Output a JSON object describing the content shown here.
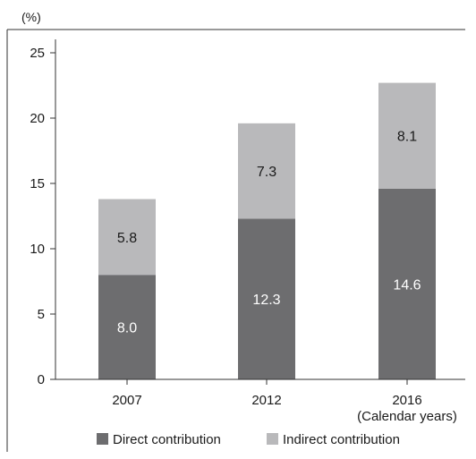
{
  "chart_data": {
    "type": "bar",
    "stacked": true,
    "categories": [
      "2007",
      "2012",
      "2016"
    ],
    "series": [
      {
        "name": "Direct contribution",
        "values": [
          8.0,
          12.3,
          14.6
        ],
        "color": "#6d6d6f",
        "label_color": "#ffffff"
      },
      {
        "name": "Indirect contribution",
        "values": [
          5.8,
          7.3,
          8.1
        ],
        "color": "#b9b9bb",
        "label_color": "#1a1a1a"
      }
    ],
    "data_labels": [
      [
        "8.0",
        "12.3",
        "14.6"
      ],
      [
        "5.8",
        "7.3",
        "8.1"
      ]
    ],
    "ylabel": "(%)",
    "xlabel": "(Calendar years)",
    "ylim": [
      0,
      25
    ],
    "yticks": [
      0,
      5,
      10,
      15,
      20,
      25
    ],
    "grid": false,
    "legend_position": "bottom"
  }
}
